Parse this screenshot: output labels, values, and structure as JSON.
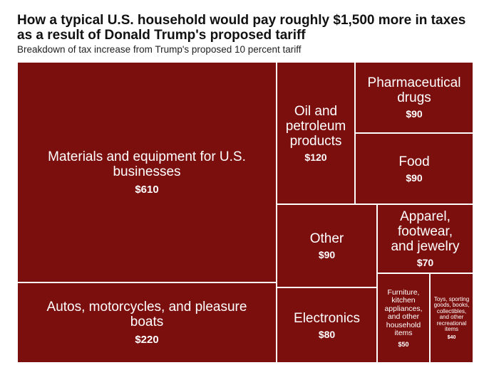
{
  "header": {
    "title": "How a typical U.S. household would pay roughly $1,500 more in taxes as a result of Donald Trump's proposed tariff",
    "subtitle": "Breakdown of tax increase from Trump's proposed 10 percent tariff"
  },
  "colors": {
    "cell": "#7b0f0d",
    "border": "#ffffff",
    "text": "#ffffff"
  },
  "chart_data": {
    "type": "treemap",
    "title": "How a typical U.S. household would pay roughly $1,500 more in taxes as a result of Donald Trump's proposed tariff",
    "subtitle": "Breakdown of tax increase from Trump's proposed 10 percent tariff",
    "categories": [
      "Materials and equipment for U.S. businesses",
      "Autos, motorcycles, and pleasure boats",
      "Oil and petroleum products",
      "Pharmaceutical drugs",
      "Food",
      "Other",
      "Apparel, footwear, and jewelry",
      "Electronics",
      "Furniture, kitchen appliances, and other household items",
      "Toys, sporting goods, books, collectibles, and other recreational items"
    ],
    "values": [
      610,
      220,
      120,
      90,
      90,
      90,
      70,
      80,
      50,
      40
    ],
    "value_labels": [
      "$610",
      "$220",
      "$120",
      "$90",
      "$90",
      "$90",
      "$70",
      "$80",
      "$50",
      "$40"
    ]
  }
}
